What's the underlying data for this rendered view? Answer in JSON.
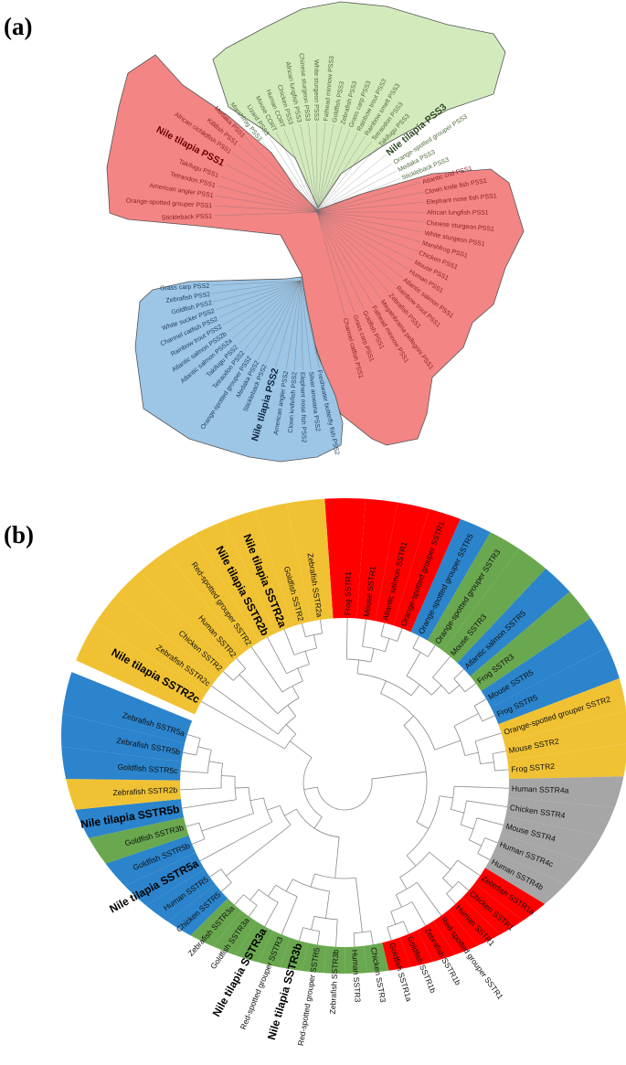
{
  "panel_a": {
    "label": "(a)",
    "groups": {
      "pss3": {
        "fill": "#d3eabd",
        "text_color": "#4d6b3c",
        "bold_color": "#2e4a22",
        "labels": [
          "Marshfrog PSS3",
          "Lizard PSS3",
          "Mouse CORT",
          "Human CORT",
          "Chicken PSS3",
          "African lungfish PSS3",
          "Chinese sturgeon PSS3",
          "White sturgeon PSS3",
          "Fathead minnow PSS3",
          "Goldfish PSS3",
          "Zebrafish PSS3",
          "Grass carp PSS3",
          "Rainbow trout PSS3",
          "Rainbow smelt PSS3",
          "Tetraodon PSS3",
          "Takifugu PSS3",
          "Nile tilapia PSS3",
          "Orange-spotted grouper PSS3",
          "Medaka PSS3",
          "Stickleback PSS3"
        ],
        "bold": [
          "Nile tilapia PSS3"
        ]
      },
      "pss1": {
        "fill": "#f38585",
        "text_color": "#8a1f1f",
        "bold_color": "#6b0000",
        "labels": [
          "Medaka PSS1",
          "Killifish PSS1",
          "African cichlidfish PSS1",
          "Nile tilapia PSS1",
          "Takifugu PSS1",
          "Tetraodon PSS1",
          "American angler PSS1",
          "Orange-spotted grouper PSS1",
          "Stickleback PSS1",
          "Atlantic cod PSS1",
          "Clown knife fish PSS1",
          "Elephant nose fish PSS1",
          "African lungfish PSS1",
          "Chinese sturgeon PSS1",
          "White sturgeon PSS1",
          "Marshfrog PSS1",
          "Chicken PSS1",
          "Mouse PSS1",
          "Human PSS1",
          "Atlantic salmon PSS1",
          "Rainbow trout PSS1",
          "Zebrafish PSS1",
          "Megalobrama pellegrini PSS1",
          "Fathead minnow PSS1",
          "Goldfish PSS1",
          "Grass carp PSS1",
          "Channel catfish PSS1"
        ],
        "bold": [
          "Nile tilapia PSS1"
        ]
      },
      "pss2": {
        "fill": "#9cc5e6",
        "text_color": "#1f3b5c",
        "bold_color": "#0d2440",
        "labels": [
          "Grass carp PSS2",
          "Zebrafish PSS2",
          "Goldfish PSS2",
          "White sucker PSS2",
          "Channel catfish PSS2",
          "Rainbow trout PSS2",
          "Atlantic salmon PSS2b",
          "Atlantic salmon PSS2a",
          "Takifugu PSS2",
          "Tetraodon PSS2",
          "Orange-spotted grouper PSS2",
          "Medaka PSS2",
          "Stickleback PSS2",
          "Nile tilapia PSS2",
          "American angler PSS2",
          "Clown knifefish PSS2",
          "Elephant nose fish PSS2",
          "Silver arowana PSS2",
          "Freshwater butterfly fish PSS2"
        ],
        "bold": [
          "Nile tilapia PSS2"
        ]
      }
    }
  },
  "panel_b": {
    "label": "(b)",
    "colors": {
      "red": "#ff0000",
      "blue": "#2b84cc",
      "green": "#6aa84f",
      "gold": "#f0c233",
      "gray": "#a6a6a6"
    },
    "leaves": [
      {
        "name": "Frog SSTR1",
        "clade": "red"
      },
      {
        "name": "Mouse SSTR1",
        "clade": "red"
      },
      {
        "name": "Atlantic salmon SSTR1",
        "clade": "red"
      },
      {
        "name": "Orange-spotted grouper SSTR1",
        "clade": "red"
      },
      {
        "name": "Orange-spotted grouper SSTR5",
        "clade": "blue"
      },
      {
        "name": "Orange-spotted grouper SSTR3",
        "clade": "green"
      },
      {
        "name": "Mouse SSTR3",
        "clade": "green"
      },
      {
        "name": "Atlantic salmon SSTR5",
        "clade": "blue"
      },
      {
        "name": "Frog SSTR3",
        "clade": "green"
      },
      {
        "name": "Mouse SSTR5",
        "clade": "blue"
      },
      {
        "name": "Frog SSTR5",
        "clade": "blue"
      },
      {
        "name": "Orange-spotted grouper SSTR2",
        "clade": "gold"
      },
      {
        "name": "Mouse SSTR2",
        "clade": "gold"
      },
      {
        "name": "Frog SSTR2",
        "clade": "gold"
      },
      {
        "name": "Human SSTR4a",
        "clade": "gray"
      },
      {
        "name": "Chicken SSTR4",
        "clade": "gray"
      },
      {
        "name": "Mouse SSTR4",
        "clade": "gray"
      },
      {
        "name": "Human SSTR4c",
        "clade": "gray"
      },
      {
        "name": "Human SSTR4b",
        "clade": "gray"
      },
      {
        "name": "Zebtrfish SSTR1a",
        "clade": "red"
      },
      {
        "name": "Chicken SSTR1",
        "clade": "red"
      },
      {
        "name": "Human SSTR1",
        "clade": "red"
      },
      {
        "name": "Red-spotted grouper SSTR1",
        "clade": "red"
      },
      {
        "name": "Zebrafish SSTR1b",
        "clade": "red"
      },
      {
        "name": "Goldfish SSTR1b",
        "clade": "red"
      },
      {
        "name": "Goldfish SSTR1a",
        "clade": "red"
      },
      {
        "name": "Chicken SSTR3",
        "clade": "green"
      },
      {
        "name": "Human SSTR3",
        "clade": "green"
      },
      {
        "name": "Zebrafish SSTR3b",
        "clade": "green"
      },
      {
        "name": "Red-spotted grouper SSTR5",
        "clade": "green"
      },
      {
        "name": "Nile tilapia SSTR3b",
        "clade": "green",
        "bold": true
      },
      {
        "name": "Red-spotted grouper SSTR3",
        "clade": "green"
      },
      {
        "name": "Nile tilapia SSTR3a",
        "clade": "green",
        "bold": true
      },
      {
        "name": "Goldfish SSTR3a",
        "clade": "green"
      },
      {
        "name": "Zebrafish SSTR3a",
        "clade": "green"
      },
      {
        "name": "Chicken SSTR5",
        "clade": "blue"
      },
      {
        "name": "Human SSTR5",
        "clade": "blue"
      },
      {
        "name": "Nile tilapia SSTR5a",
        "clade": "blue",
        "bold": true
      },
      {
        "name": "Goldfish SSTR5b",
        "clade": "blue"
      },
      {
        "name": "Goldfish SSTR3b",
        "clade": "green"
      },
      {
        "name": "Nile tilapia SSTR5b",
        "clade": "blue",
        "bold": true
      },
      {
        "name": "Zebrafish SSTR2b",
        "clade": "gold"
      },
      {
        "name": "Goldfish SSTR5c",
        "clade": "blue"
      },
      {
        "name": "Zebrafish SSTR5b",
        "clade": "blue"
      },
      {
        "name": "Zebrafish SSTR5a",
        "clade": "blue"
      },
      {
        "name": "Nile tilapia SSTR2c",
        "clade": "gold",
        "bold": true
      },
      {
        "name": "Zebrafish SSTR2c",
        "clade": "gold"
      },
      {
        "name": "Chicken SSTR2",
        "clade": "gold"
      },
      {
        "name": "Human SSTR2",
        "clade": "gold"
      },
      {
        "name": "Red-spotted grouper SSTR2",
        "clade": "gold"
      },
      {
        "name": "Nile tilapia SSTR2b",
        "clade": "gold",
        "bold": true
      },
      {
        "name": "Nile tilapia SSTR2a",
        "clade": "gold",
        "bold": true
      },
      {
        "name": "Goldfish SSTR2",
        "clade": "gold"
      },
      {
        "name": "Zebrafish SSTR2a",
        "clade": "gold"
      }
    ],
    "tree": [
      [
        [
          [
            [
              0,
              [
                1,
                [
                  2,
                  3
                ]
              ]
            ],
            [
              [
                4,
                5
              ],
              [
                6,
                [
                  7,
                  8
                ]
              ]
            ]
          ],
          [
            [
              9,
              10
            ],
            [
              11,
              [
                12,
                13
              ]
            ]
          ]
        ],
        [
          [
            14,
            [
              15,
              [
                16,
                [
                  17,
                  18
                ]
              ]
            ]
          ],
          [
            [
              19,
              [
                20,
                21
              ]
            ],
            [
              22,
              [
                23,
                [
                  24,
                  25
                ]
              ]
            ]
          ]
        ]
      ],
      [
        [
          [
            [
              26,
              27
            ],
            [
              [
                28,
                [
                  29,
                  30
                ]
              ],
              [
                31,
                [
                  32,
                  [
                    33,
                    34
                  ]
                ]
              ]
            ]
          ],
          [
            [
              35,
              36
            ],
            [
              37,
              [
                [
                  38,
                  39
                ],
                [
                  40,
                  [
                    41,
                    [
                      42,
                      [
                        43,
                        44
                      ]
                    ]
                  ]
                ]
              ]
            ]
          ]
        ],
        [
          45,
          [
            46,
            [
              [
                47,
                48
              ],
              [
                49,
                [
                  50,
                  [
                    51,
                    [
                      52,
                      53
                    ]
                  ]
                ]
              ]
            ]
          ]
        ]
      ]
    ]
  }
}
